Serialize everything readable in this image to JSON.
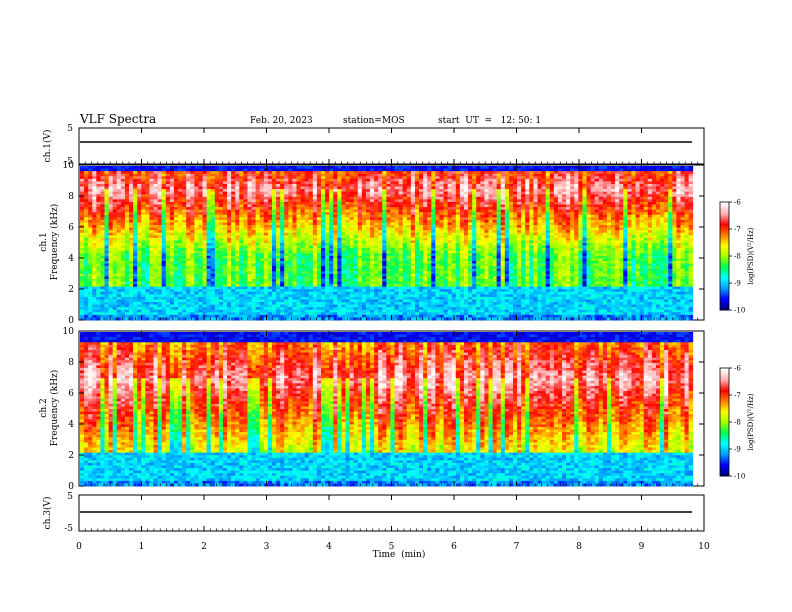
{
  "header": {
    "title": "VLF Spectra",
    "date": "Feb. 20, 2023",
    "station": "station=MOS",
    "start_ut": "start  UT  =   12: 50: 1"
  },
  "chart_data": {
    "type": "heatmap",
    "time_axis": {
      "label": "Time  (min)",
      "range": [
        0,
        10
      ],
      "ticks": [
        "0",
        "1",
        "2",
        "3",
        "4",
        "5",
        "6",
        "7",
        "8",
        "9",
        "10"
      ],
      "data_end": 9.82
    },
    "waveform_panels": [
      {
        "ylabel": "ch.1(V)",
        "ylim": [
          -5,
          5
        ],
        "ticks": [
          "5",
          "-5"
        ],
        "baseline": 0
      },
      {
        "ylabel": "ch.3(V)",
        "ylim": [
          -5,
          5
        ],
        "ticks": [
          "5",
          "-5"
        ],
        "baseline": 0
      }
    ],
    "spectrogram_panels": [
      {
        "ylabel": "ch.1\nFrequency (kHz)",
        "ylim": [
          0,
          10
        ],
        "ticks": [
          "0",
          "2",
          "4",
          "6",
          "8",
          "10"
        ],
        "peak_band_khz": [
          8.0,
          9.0
        ],
        "quiet_top_khz": 9.6
      },
      {
        "ylabel": "ch.2\nFrequency (kHz)",
        "ylim": [
          0,
          10
        ],
        "ticks": [
          "0",
          "2",
          "4",
          "6",
          "8",
          "10"
        ],
        "peak_band_khz": [
          5.5,
          8.5
        ],
        "quiet_top_khz": 9.3
      }
    ],
    "colorbar": {
      "title": "log(PSD)(V²/Hz)",
      "range": [
        -10,
        -6
      ],
      "ticks": [
        "-6",
        "-7",
        "-8",
        "-9",
        "-10"
      ],
      "colormap": [
        "#00007a",
        "#0000ff",
        "#00a0ff",
        "#00ffff",
        "#00ff50",
        "#a0ff00",
        "#ffff00",
        "#ff8000",
        "#ff0000",
        "#ffb0b0",
        "#ffffff"
      ]
    }
  }
}
